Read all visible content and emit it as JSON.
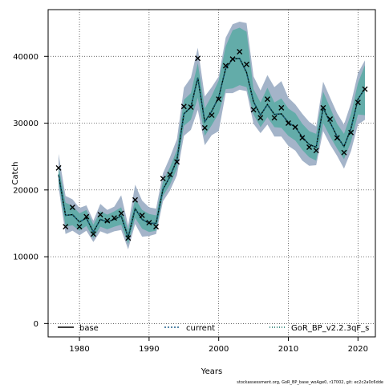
{
  "chart_data": {
    "type": "line",
    "xlabel": "Years",
    "ylabel": "Catch",
    "xlim": [
      1975.5,
      2022.5
    ],
    "ylim": [
      -2000,
      47000
    ],
    "x_ticks": [
      1980,
      1990,
      2000,
      2010,
      2020
    ],
    "y_ticks": [
      0,
      10000,
      20000,
      30000,
      40000
    ],
    "grid": true,
    "legend_placement": "bottom",
    "footnote": "stockassessment.org,  GoR_BP_base_woAge0,  r17002,  git: ec2c2a0c6dde",
    "colors": {
      "outer_band": "#a4b4c9",
      "inner_band": "#63aca9",
      "base": "#000000",
      "current": "#1f5f8b",
      "gor": "#0b6b5e",
      "observed": "#000000"
    },
    "x": [
      1977,
      1978,
      1979,
      1980,
      1981,
      1982,
      1983,
      1984,
      1985,
      1986,
      1987,
      1988,
      1989,
      1990,
      1991,
      1992,
      1993,
      1994,
      1995,
      1996,
      1997,
      1998,
      1999,
      2000,
      2001,
      2002,
      2003,
      2004,
      2005,
      2006,
      2007,
      2008,
      2009,
      2010,
      2011,
      2012,
      2013,
      2014,
      2015,
      2016,
      2017,
      2018,
      2019,
      2020,
      2021
    ],
    "estimate": [
      22300,
      16200,
      16300,
      15200,
      15800,
      13700,
      15600,
      15200,
      15600,
      16100,
      12900,
      17200,
      15600,
      15000,
      15000,
      20100,
      22000,
      24500,
      31400,
      32400,
      36800,
      30200,
      31800,
      33900,
      38200,
      39600,
      39700,
      37600,
      33200,
      31200,
      32800,
      31300,
      31400,
      30100,
      29400,
      27900,
      26800,
      26400,
      32300,
      30100,
      28000,
      26500,
      29200,
      33600,
      35200
    ],
    "inner_lower": [
      21200,
      14500,
      14700,
      13900,
      14600,
      12800,
      14500,
      14100,
      14500,
      14800,
      11900,
      15800,
      14200,
      13700,
      13900,
      19100,
      20800,
      23200,
      29600,
      30500,
      33800,
      28100,
      29700,
      31500,
      35100,
      35200,
      35700,
      35400,
      31300,
      29400,
      30900,
      29400,
      29300,
      28100,
      27400,
      26000,
      24900,
      24400,
      30000,
      28000,
      26200,
      24600,
      27200,
      31300,
      31200
    ],
    "inner_upper": [
      23500,
      18100,
      17600,
      16500,
      17000,
      14800,
      16800,
      16300,
      16800,
      17400,
      14000,
      18700,
      17000,
      16400,
      16200,
      21300,
      23400,
      26000,
      33500,
      34500,
      39000,
      32200,
      34100,
      36400,
      41500,
      43900,
      44300,
      43700,
      35100,
      33100,
      35300,
      33100,
      33700,
      32200,
      31500,
      29900,
      28800,
      28400,
      34700,
      32300,
      29900,
      28400,
      31400,
      36000,
      38700
    ],
    "outer_lower": [
      20400,
      13400,
      13900,
      13200,
      13900,
      12200,
      13800,
      13400,
      13800,
      14000,
      11100,
      14900,
      13000,
      13100,
      13400,
      18300,
      19900,
      22200,
      28100,
      29000,
      32000,
      26700,
      28200,
      28800,
      34500,
      34500,
      35000,
      34800,
      29900,
      28500,
      29800,
      28000,
      28000,
      26600,
      25900,
      24400,
      23600,
      23700,
      28800,
      26800,
      25100,
      23200,
      25800,
      29800,
      30500
    ],
    "outer_upper": [
      25400,
      19100,
      18600,
      17300,
      17700,
      15400,
      17900,
      17000,
      17500,
      19200,
      14700,
      20800,
      18400,
      17400,
      17200,
      22500,
      24900,
      27600,
      35300,
      36800,
      41300,
      34000,
      35400,
      37000,
      42800,
      44800,
      45200,
      45000,
      37000,
      34900,
      37200,
      35400,
      36300,
      33800,
      32800,
      31400,
      30200,
      29500,
      36200,
      33800,
      31500,
      29800,
      33000,
      37500,
      39400
    ],
    "observed": [
      23300,
      14500,
      17400,
      14500,
      16000,
      13400,
      16300,
      15400,
      15800,
      16500,
      12800,
      18500,
      16200,
      15100,
      14500,
      21700,
      22300,
      24200,
      32500,
      32400,
      39700,
      29300,
      31200,
      33600,
      38600,
      39600,
      40700,
      38800,
      32000,
      30800,
      33600,
      30800,
      32300,
      30000,
      29400,
      27800,
      26400,
      25900,
      32300,
      30600,
      27800,
      25600,
      28600,
      33100,
      35100
    ],
    "series": [
      {
        "name": "base",
        "style": "solid"
      },
      {
        "name": "current",
        "style": "dotted"
      },
      {
        "name": "GoR_BP_v2.2.3qF_s",
        "style": "dotted"
      }
    ]
  }
}
